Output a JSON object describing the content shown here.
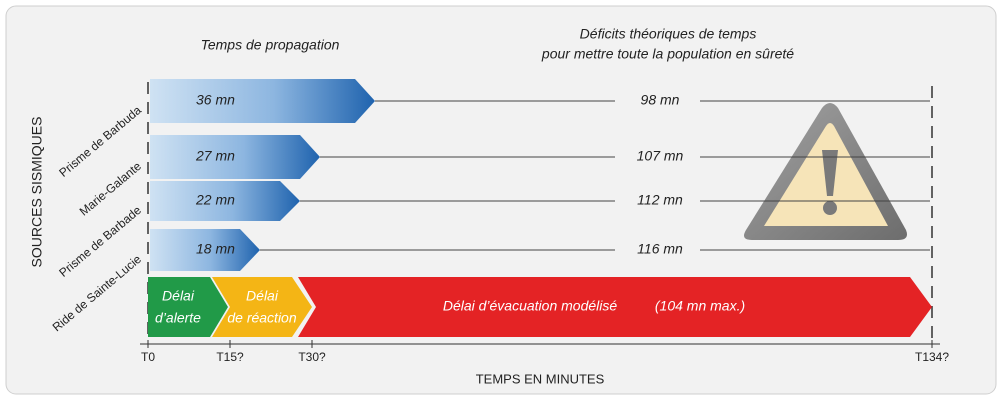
{
  "header": {
    "propagation_title": "Temps de propagation",
    "deficit_title": [
      "Déficits théoriques de temps",
      "pour mettre toute la population en sûreté"
    ]
  },
  "y_axis_label": "SOURCES SISMIQUES",
  "x_axis_label": "TEMPS EN MINUTES",
  "rows": [
    {
      "source": "Prisme de Barbuda",
      "propagation": "36 mn",
      "deficit": "98 mn"
    },
    {
      "source": "Marie-Galante",
      "propagation": "27 mn",
      "deficit": "107 mn"
    },
    {
      "source": "Prisme de Barbade",
      "propagation": "22 mn",
      "deficit": "112 mn"
    },
    {
      "source": "Ride de Sainte-Lucie",
      "propagation": "18 mn",
      "deficit": "116 mn"
    }
  ],
  "phases": {
    "alert": [
      "Délai",
      "d’alerte"
    ],
    "reaction": [
      "Délai",
      "de réaction"
    ],
    "evacuation": "Délai d’évacuation modélisé",
    "evacuation_max": "(104 mn max.)"
  },
  "x_ticks": [
    "T0",
    "T15?",
    "T30?",
    "T134?"
  ]
}
